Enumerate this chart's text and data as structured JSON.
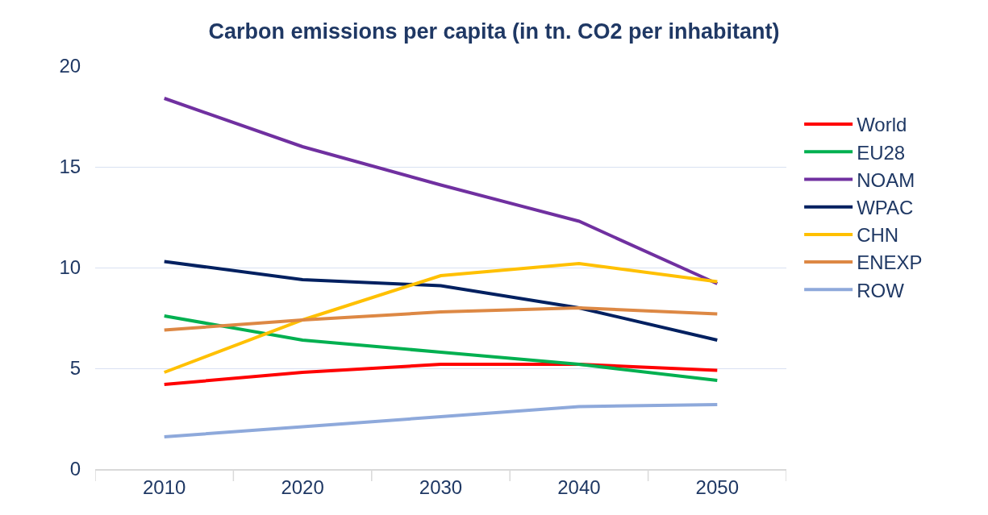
{
  "chart_data": {
    "type": "line",
    "title": "Carbon emissions per capita (in tn. CO2 per inhabitant)",
    "categories": [
      "2010",
      "2020",
      "2030",
      "2040",
      "2050"
    ],
    "series": [
      {
        "name": "World",
        "color": "#ff0000",
        "values": [
          4.2,
          4.8,
          5.2,
          5.2,
          4.9
        ]
      },
      {
        "name": "EU28",
        "color": "#00b050",
        "values": [
          7.6,
          6.4,
          5.8,
          5.2,
          4.4
        ]
      },
      {
        "name": "NOAM",
        "color": "#7030a0",
        "values": [
          18.4,
          16.0,
          14.1,
          12.3,
          9.2
        ]
      },
      {
        "name": "WPAC",
        "color": "#002060",
        "values": [
          10.3,
          9.4,
          9.1,
          8.0,
          6.4
        ]
      },
      {
        "name": "CHN",
        "color": "#ffc000",
        "values": [
          4.8,
          7.4,
          9.6,
          10.2,
          9.3
        ]
      },
      {
        "name": "ENEXP",
        "color": "#dd8844",
        "values": [
          6.9,
          7.4,
          7.8,
          8.0,
          7.7
        ]
      },
      {
        "name": "ROW",
        "color": "#8ea9db",
        "values": [
          1.6,
          2.1,
          2.6,
          3.1,
          3.2
        ]
      }
    ],
    "ylim": [
      0,
      20
    ],
    "yticks": [
      0,
      5,
      10,
      15,
      20
    ],
    "grid": "y",
    "legend": "right",
    "marker": "none",
    "line_style": "solid"
  }
}
